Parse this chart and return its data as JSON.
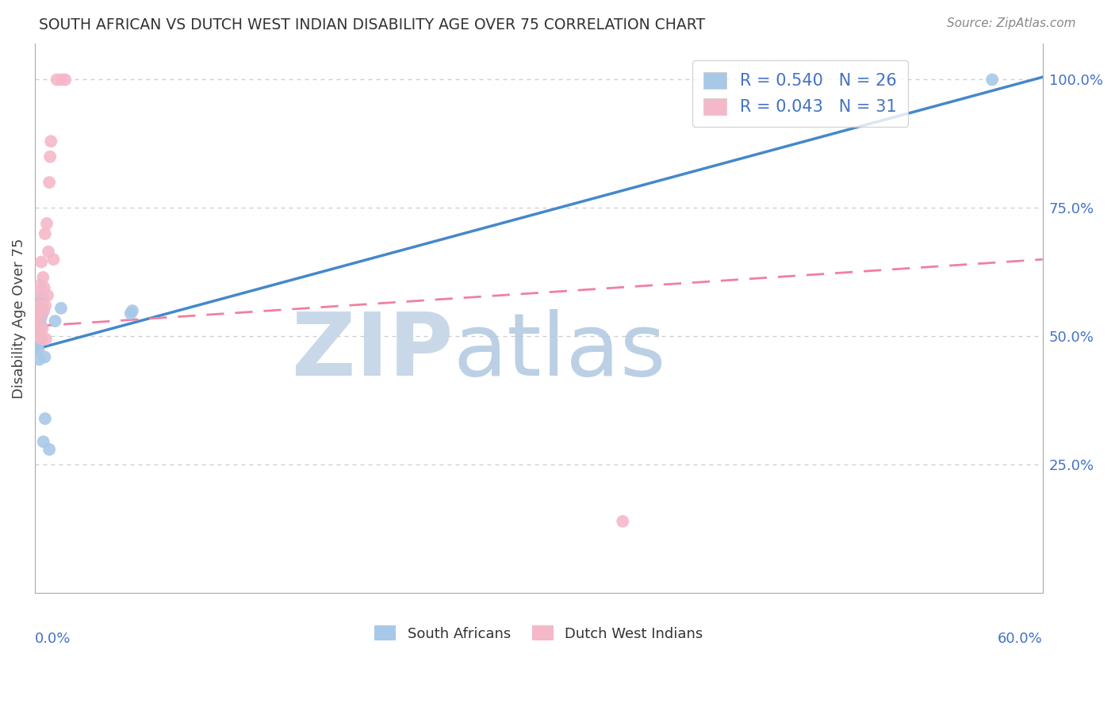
{
  "title": "SOUTH AFRICAN VS DUTCH WEST INDIAN DISABILITY AGE OVER 75 CORRELATION CHART",
  "source": "Source: ZipAtlas.com",
  "ylabel": "Disability Age Over 75",
  "xlim": [
    0.0,
    0.6
  ],
  "ylim": [
    0.0,
    1.07
  ],
  "blue_color": "#a8c8e8",
  "pink_color": "#f4b8c8",
  "blue_line_color": "#4488cc",
  "pink_line_color": "#f080a0",
  "text_color": "#4472c4",
  "axis_color": "#aaaaaa",
  "grid_color": "#cccccc",
  "background_color": "#ffffff",
  "watermark_zip_color": "#c8d8e8",
  "watermark_atlas_color": "#b0c8e0",
  "sa_line_x0": 0.0,
  "sa_line_y0": 0.475,
  "sa_line_x1": 0.6,
  "sa_line_y1": 1.005,
  "dw_line_x0": 0.0,
  "dw_line_y0": 0.52,
  "dw_line_x1": 0.6,
  "dw_line_y1": 0.65,
  "sa_x": [
    0.0008,
    0.0008,
    0.001,
    0.0012,
    0.0015,
    0.0018,
    0.002,
    0.0022,
    0.0025,
    0.0025,
    0.0028,
    0.003,
    0.0035,
    0.0038,
    0.004,
    0.0045,
    0.0048,
    0.005,
    0.0058,
    0.006,
    0.0085,
    0.012,
    0.0155,
    0.057,
    0.058,
    0.57
  ],
  "sa_y": [
    0.48,
    0.495,
    0.515,
    0.55,
    0.5,
    0.52,
    0.475,
    0.56,
    0.455,
    0.495,
    0.54,
    0.575,
    0.535,
    0.52,
    0.495,
    0.545,
    0.575,
    0.295,
    0.46,
    0.34,
    0.28,
    0.53,
    0.555,
    0.545,
    0.55,
    1.0
  ],
  "dw_x": [
    0.0008,
    0.0012,
    0.0018,
    0.002,
    0.0022,
    0.0025,
    0.0028,
    0.003,
    0.0032,
    0.0035,
    0.0038,
    0.004,
    0.0042,
    0.0045,
    0.0048,
    0.0052,
    0.0055,
    0.006,
    0.0062,
    0.0065,
    0.007,
    0.0075,
    0.008,
    0.0085,
    0.009,
    0.0095,
    0.011,
    0.013,
    0.016,
    0.018,
    0.35
  ],
  "dw_y": [
    0.5,
    0.555,
    0.515,
    0.585,
    0.56,
    0.515,
    0.535,
    0.545,
    0.6,
    0.56,
    0.645,
    0.495,
    0.55,
    0.515,
    0.615,
    0.55,
    0.595,
    0.7,
    0.56,
    0.495,
    0.72,
    0.58,
    0.665,
    0.8,
    0.85,
    0.88,
    0.65,
    1.0,
    1.0,
    1.0,
    0.14
  ],
  "yticks": [
    0.0,
    0.25,
    0.5,
    0.75,
    1.0
  ],
  "ytick_labels": [
    "",
    "25.0%",
    "50.0%",
    "75.0%",
    "100.0%"
  ],
  "legend_r1": "R = 0.540",
  "legend_n1": "N = 26",
  "legend_r2": "R = 0.043",
  "legend_n2": "N = 31"
}
